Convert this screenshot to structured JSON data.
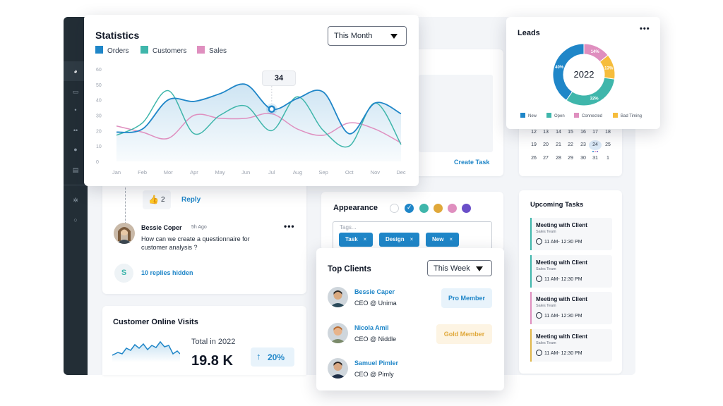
{
  "statistics": {
    "title": "Statistics",
    "period": "This Month",
    "legend": [
      {
        "name": "Orders",
        "color": "#1f86c8"
      },
      {
        "name": "Customers",
        "color": "#3fb6ab"
      },
      {
        "name": "Sales",
        "color": "#df8fbf"
      }
    ],
    "tooltip_value": "34"
  },
  "chart_data": {
    "type": "line",
    "x": [
      "Jan",
      "Feb",
      "Mor",
      "Apr",
      "May",
      "Jun",
      "Jul",
      "Aug",
      "Sep",
      "Oct",
      "Nov",
      "Dec"
    ],
    "y_ticks": [
      "60",
      "50",
      "40",
      "30",
      "20",
      "10",
      "0"
    ],
    "ylim": [
      0,
      60
    ],
    "series": [
      {
        "name": "Orders",
        "color": "#1f86c8",
        "values": [
          19,
          21,
          40,
          39,
          44,
          50,
          34,
          41,
          45,
          18,
          38,
          31
        ]
      },
      {
        "name": "Customers",
        "color": "#3fb6ab",
        "values": [
          17,
          25,
          46,
          18,
          30,
          36,
          20,
          42,
          20,
          10,
          38,
          11
        ]
      },
      {
        "name": "Sales",
        "color": "#df8fbf",
        "values": [
          23,
          19,
          15,
          30,
          28,
          28,
          31,
          21,
          17,
          25,
          21,
          12
        ]
      }
    ],
    "tooltip": {
      "x": "Jul",
      "value": 34
    },
    "area_fill": "Orders"
  },
  "leads": {
    "title": "Leads",
    "center_label": "2022",
    "menu": "•••",
    "slices": [
      {
        "name": "New",
        "value": 40,
        "label": "40%",
        "color": "#1f86c8"
      },
      {
        "name": "Open",
        "value": 32,
        "label": "32%",
        "color": "#3fb6ab"
      },
      {
        "name": "Connected",
        "value": 14,
        "label": "14%",
        "color": "#df8fbf"
      },
      {
        "name": "Bad Timing",
        "value": 13,
        "label": "13%",
        "color": "#f6bd3c"
      }
    ]
  },
  "calendar": {
    "rows": [
      [
        "12",
        "13",
        "14",
        "15",
        "16",
        "17",
        "18"
      ],
      [
        "19",
        "20",
        "21",
        "22",
        "23",
        "24",
        "25"
      ],
      [
        "26",
        "27",
        "28",
        "29",
        "30",
        "31",
        "1"
      ]
    ],
    "selected": "24"
  },
  "task_panel": {
    "link": "Create Task"
  },
  "comments": {
    "likes": "2",
    "reply": "Reply",
    "author": "Bessie Coper",
    "time": "5h Ago",
    "text_line1": "How can we create a questionnaire for",
    "text_line2": "customer analysis ?",
    "menu": "•••",
    "hidden_avatar": "S",
    "hidden": "10 replies hidden"
  },
  "visits": {
    "title": "Customer Online Visits",
    "total_label": "Total in 2022",
    "total_value": "19.8 K",
    "change": "20%"
  },
  "appearance": {
    "title": "Appearance",
    "colors": [
      "#ffffff",
      "#1f86c8",
      "#3fb6ab",
      "#e0a83a",
      "#df8fbf",
      "#6a4fc8"
    ],
    "tags_placeholder": "Tags...",
    "tags": [
      "Task",
      "Design",
      "New"
    ],
    "remove": "×"
  },
  "upcoming": {
    "title": "Upcoming Tasks",
    "tasks": [
      {
        "title": "Meeting with Client",
        "team": "Sales Team",
        "time": "11 AM- 12:30 PM",
        "color": "#3fb6ab"
      },
      {
        "title": "Meeting with Client",
        "team": "Sales Team",
        "time": "11 AM- 12:30 PM",
        "color": "#3fb6ab"
      },
      {
        "title": "Meeting with Client",
        "team": "Sales Team",
        "time": "11 AM- 12:30 PM",
        "color": "#df8fbf"
      },
      {
        "title": "Meeting with Client",
        "team": "Sales Team",
        "time": "11 AM- 12:30 PM",
        "color": "#e0b64a"
      }
    ]
  },
  "top_clients": {
    "title": "Top Clients",
    "period": "This Week",
    "clients": [
      {
        "name": "Bessie Caper",
        "role": "CEO @ Unima",
        "badge": "Pro Member",
        "badge_color": "#1f86c8",
        "badge_bg": "#e8f3fb"
      },
      {
        "name": "Nicola Amil",
        "role": "CEO @ Niddle",
        "badge": "Gold Member",
        "badge_color": "#e0a83a",
        "badge_bg": "#fdf4e3"
      },
      {
        "name": "Samuel Pimler",
        "role": "CEO @ Pimly",
        "badge": "",
        "badge_color": "",
        "badge_bg": ""
      }
    ]
  }
}
